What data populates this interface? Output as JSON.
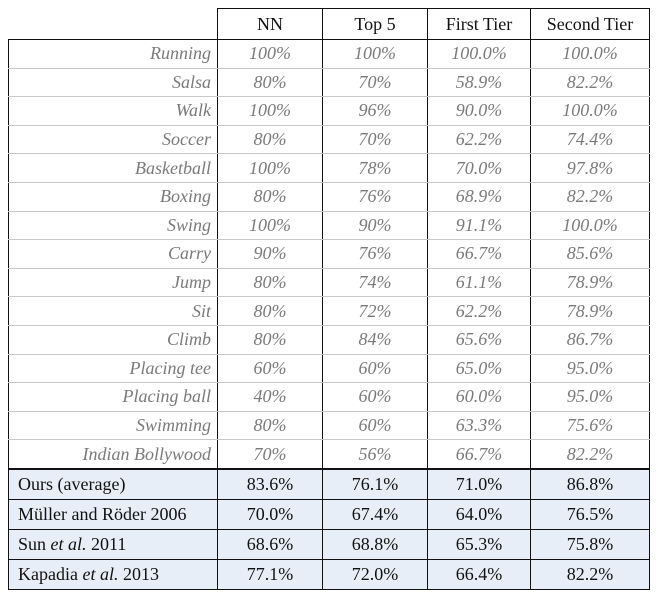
{
  "columns": [
    "NN",
    "Top 5",
    "First Tier",
    "Second Tier"
  ],
  "actions": [
    {
      "label": "Running",
      "values": [
        "100%",
        "100%",
        "100.0%",
        "100.0%"
      ]
    },
    {
      "label": "Salsa",
      "values": [
        "80%",
        "70%",
        "58.9%",
        "82.2%"
      ]
    },
    {
      "label": "Walk",
      "values": [
        "100%",
        "96%",
        "90.0%",
        "100.0%"
      ]
    },
    {
      "label": "Soccer",
      "values": [
        "80%",
        "70%",
        "62.2%",
        "74.4%"
      ]
    },
    {
      "label": "Basketball",
      "values": [
        "100%",
        "78%",
        "70.0%",
        "97.8%"
      ]
    },
    {
      "label": "Boxing",
      "values": [
        "80%",
        "76%",
        "68.9%",
        "82.2%"
      ]
    },
    {
      "label": "Swing",
      "values": [
        "100%",
        "90%",
        "91.1%",
        "100.0%"
      ]
    },
    {
      "label": "Carry",
      "values": [
        "90%",
        "76%",
        "66.7%",
        "85.6%"
      ]
    },
    {
      "label": "Jump",
      "values": [
        "80%",
        "74%",
        "61.1%",
        "78.9%"
      ]
    },
    {
      "label": "Sit",
      "values": [
        "80%",
        "72%",
        "62.2%",
        "78.9%"
      ]
    },
    {
      "label": "Climb",
      "values": [
        "80%",
        "84%",
        "65.6%",
        "86.7%"
      ]
    },
    {
      "label": "Placing tee",
      "values": [
        "60%",
        "60%",
        "65.0%",
        "95.0%"
      ]
    },
    {
      "label": "Placing ball",
      "values": [
        "40%",
        "60%",
        "60.0%",
        "95.0%"
      ]
    },
    {
      "label": "Swimming",
      "values": [
        "80%",
        "60%",
        "63.3%",
        "75.6%"
      ]
    },
    {
      "label": "Indian Bollywood",
      "values": [
        "70%",
        "56%",
        "66.7%",
        "82.2%"
      ]
    }
  ],
  "summary": [
    {
      "label_pre": "Ours (average)",
      "label_italic": "",
      "label_post": "",
      "values": [
        "83.6%",
        "76.1%",
        "71.0%",
        "86.8%"
      ]
    },
    {
      "label_pre": "Müller and Röder 2006",
      "label_italic": "",
      "label_post": "",
      "values": [
        "70.0%",
        "67.4%",
        "64.0%",
        "76.5%"
      ]
    },
    {
      "label_pre": "Sun ",
      "label_italic": "et al.",
      "label_post": " 2011",
      "values": [
        "68.6%",
        "68.8%",
        "65.3%",
        "75.8%"
      ]
    },
    {
      "label_pre": "Kapadia ",
      "label_italic": "et al.",
      "label_post": " 2013",
      "values": [
        "77.1%",
        "72.0%",
        "66.4%",
        "82.2%"
      ]
    }
  ]
}
